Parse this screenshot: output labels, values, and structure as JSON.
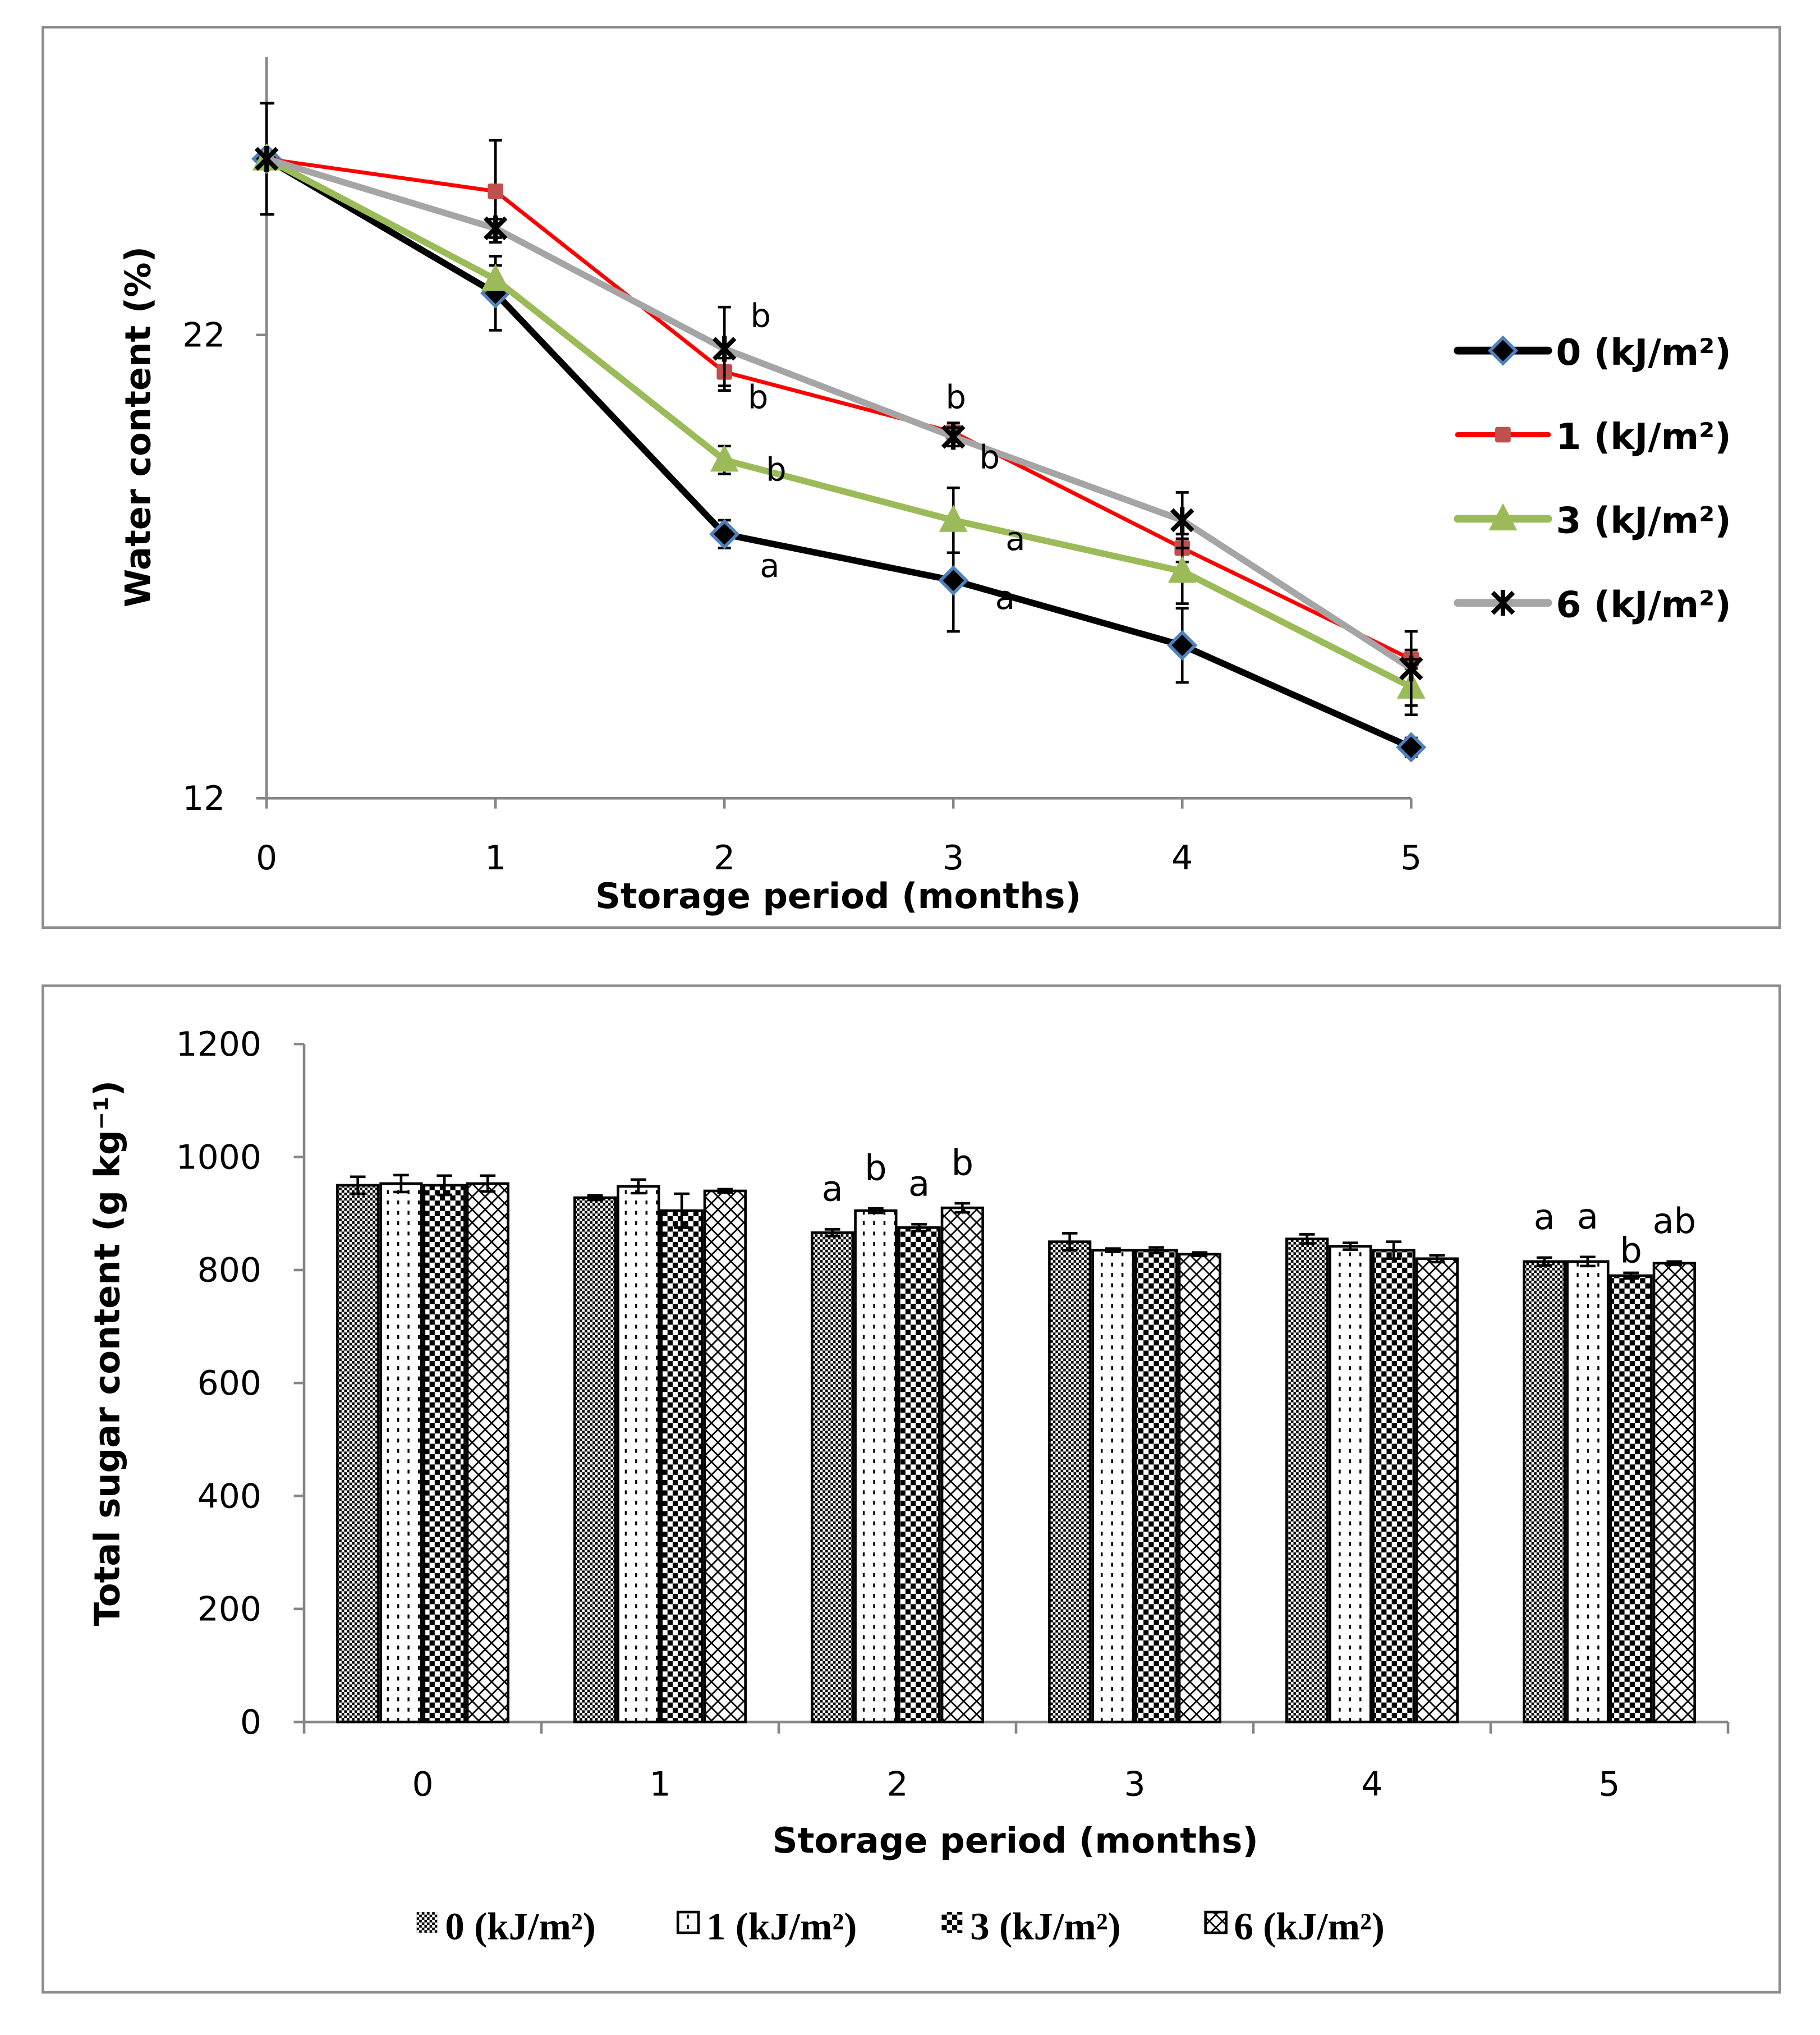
{
  "chart_data": [
    {
      "type": "line",
      "title": "",
      "xlabel": "Storage period (months)",
      "ylabel": "Water content (%)",
      "x": [
        0,
        1,
        2,
        3,
        4,
        5
      ],
      "xticks": [
        "0",
        "1",
        "2",
        "3",
        "4",
        "5"
      ],
      "yticks": [
        "12",
        "22"
      ],
      "ytick_values": [
        12,
        22
      ],
      "ylim": [
        12,
        28
      ],
      "grid": false,
      "legend_position": "right",
      "series": [
        {
          "name": "0 (kJ/m²)",
          "color": "#000000",
          "marker": "diamond",
          "marker_edge": "#4F81BD",
          "values": [
            25.8,
            22.9,
            17.7,
            16.7,
            15.3,
            13.1
          ],
          "errors": [
            1.2,
            0.8,
            0.3,
            1.1,
            0.8,
            0.2
          ]
        },
        {
          "name": "1 (kJ/m²)",
          "color": "#FF0000",
          "marker": "square",
          "marker_fill": "#C0504D",
          "values": [
            25.8,
            25.1,
            21.2,
            19.9,
            17.4,
            15.0
          ],
          "errors": [
            0,
            1.1,
            0.3,
            0.2,
            0.3,
            0.2
          ]
        },
        {
          "name": "3 (kJ/m²)",
          "color": "#9BBB59",
          "marker": "triangle",
          "values": [
            25.8,
            23.2,
            19.3,
            18.0,
            16.9,
            14.4
          ],
          "errors": [
            0,
            0.3,
            0.3,
            0.7,
            0.7,
            0.6
          ]
        },
        {
          "name": "6 (kJ/m²)",
          "color": "#A5A5A5",
          "marker": "star",
          "values": [
            25.8,
            24.3,
            21.7,
            19.8,
            18.0,
            14.8
          ],
          "errors": [
            0,
            0.2,
            0.9,
            0.2,
            0.6,
            0.8
          ]
        }
      ],
      "annotations": [
        {
          "month": 2,
          "series": 3,
          "text": "b"
        },
        {
          "month": 2,
          "series": 1,
          "text": "b"
        },
        {
          "month": 2,
          "series": 2,
          "text": "b"
        },
        {
          "month": 2,
          "series": 0,
          "text": "a"
        },
        {
          "month": 3,
          "series": 3,
          "text": "b"
        },
        {
          "month": 3,
          "series": 1,
          "text": "b"
        },
        {
          "month": 3,
          "series": 2,
          "text": "a"
        },
        {
          "month": 3,
          "series": 0,
          "text": "a"
        }
      ]
    },
    {
      "type": "bar",
      "title": "",
      "xlabel": "Storage period (months)",
      "ylabel": "Total sugar content (g kg⁻¹)",
      "categories": [
        "0",
        "1",
        "2",
        "3",
        "4",
        "5"
      ],
      "yticks": [
        "0",
        "200",
        "400",
        "600",
        "800",
        "1000",
        "1200"
      ],
      "ytick_values": [
        0,
        200,
        400,
        600,
        800,
        1000,
        1200
      ],
      "ylim": [
        0,
        1200
      ],
      "grid": false,
      "legend_position": "bottom",
      "series": [
        {
          "name": "0 (kJ/m²)",
          "pattern": "fine-checker",
          "values": [
            950,
            928,
            866,
            850,
            855,
            815
          ],
          "errors": [
            15,
            4,
            6,
            15,
            8,
            7
          ]
        },
        {
          "name": "1 (kJ/m²)",
          "pattern": "dotted-lines",
          "values": [
            953,
            948,
            905,
            835,
            842,
            815
          ],
          "errors": [
            15,
            12,
            4,
            3,
            6,
            8
          ]
        },
        {
          "name": "3 (kJ/m²)",
          "pattern": "large-checker",
          "values": [
            950,
            905,
            875,
            835,
            835,
            790
          ],
          "errors": [
            17,
            30,
            6,
            5,
            15,
            5
          ]
        },
        {
          "name": "6 (kJ/m²)",
          "pattern": "diagonal-cross",
          "values": [
            953,
            940,
            910,
            828,
            820,
            812
          ],
          "errors": [
            14,
            3,
            8,
            3,
            6,
            3
          ]
        }
      ],
      "annotations": [
        {
          "month": 2,
          "series": 0,
          "text": "a"
        },
        {
          "month": 2,
          "series": 1,
          "text": "b"
        },
        {
          "month": 2,
          "series": 2,
          "text": "a"
        },
        {
          "month": 2,
          "series": 3,
          "text": "b"
        },
        {
          "month": 5,
          "series": 0,
          "text": "a"
        },
        {
          "month": 5,
          "series": 1,
          "text": "a"
        },
        {
          "month": 5,
          "series": 2,
          "text": "b"
        },
        {
          "month": 5,
          "series": 3,
          "text": "ab"
        }
      ]
    }
  ]
}
